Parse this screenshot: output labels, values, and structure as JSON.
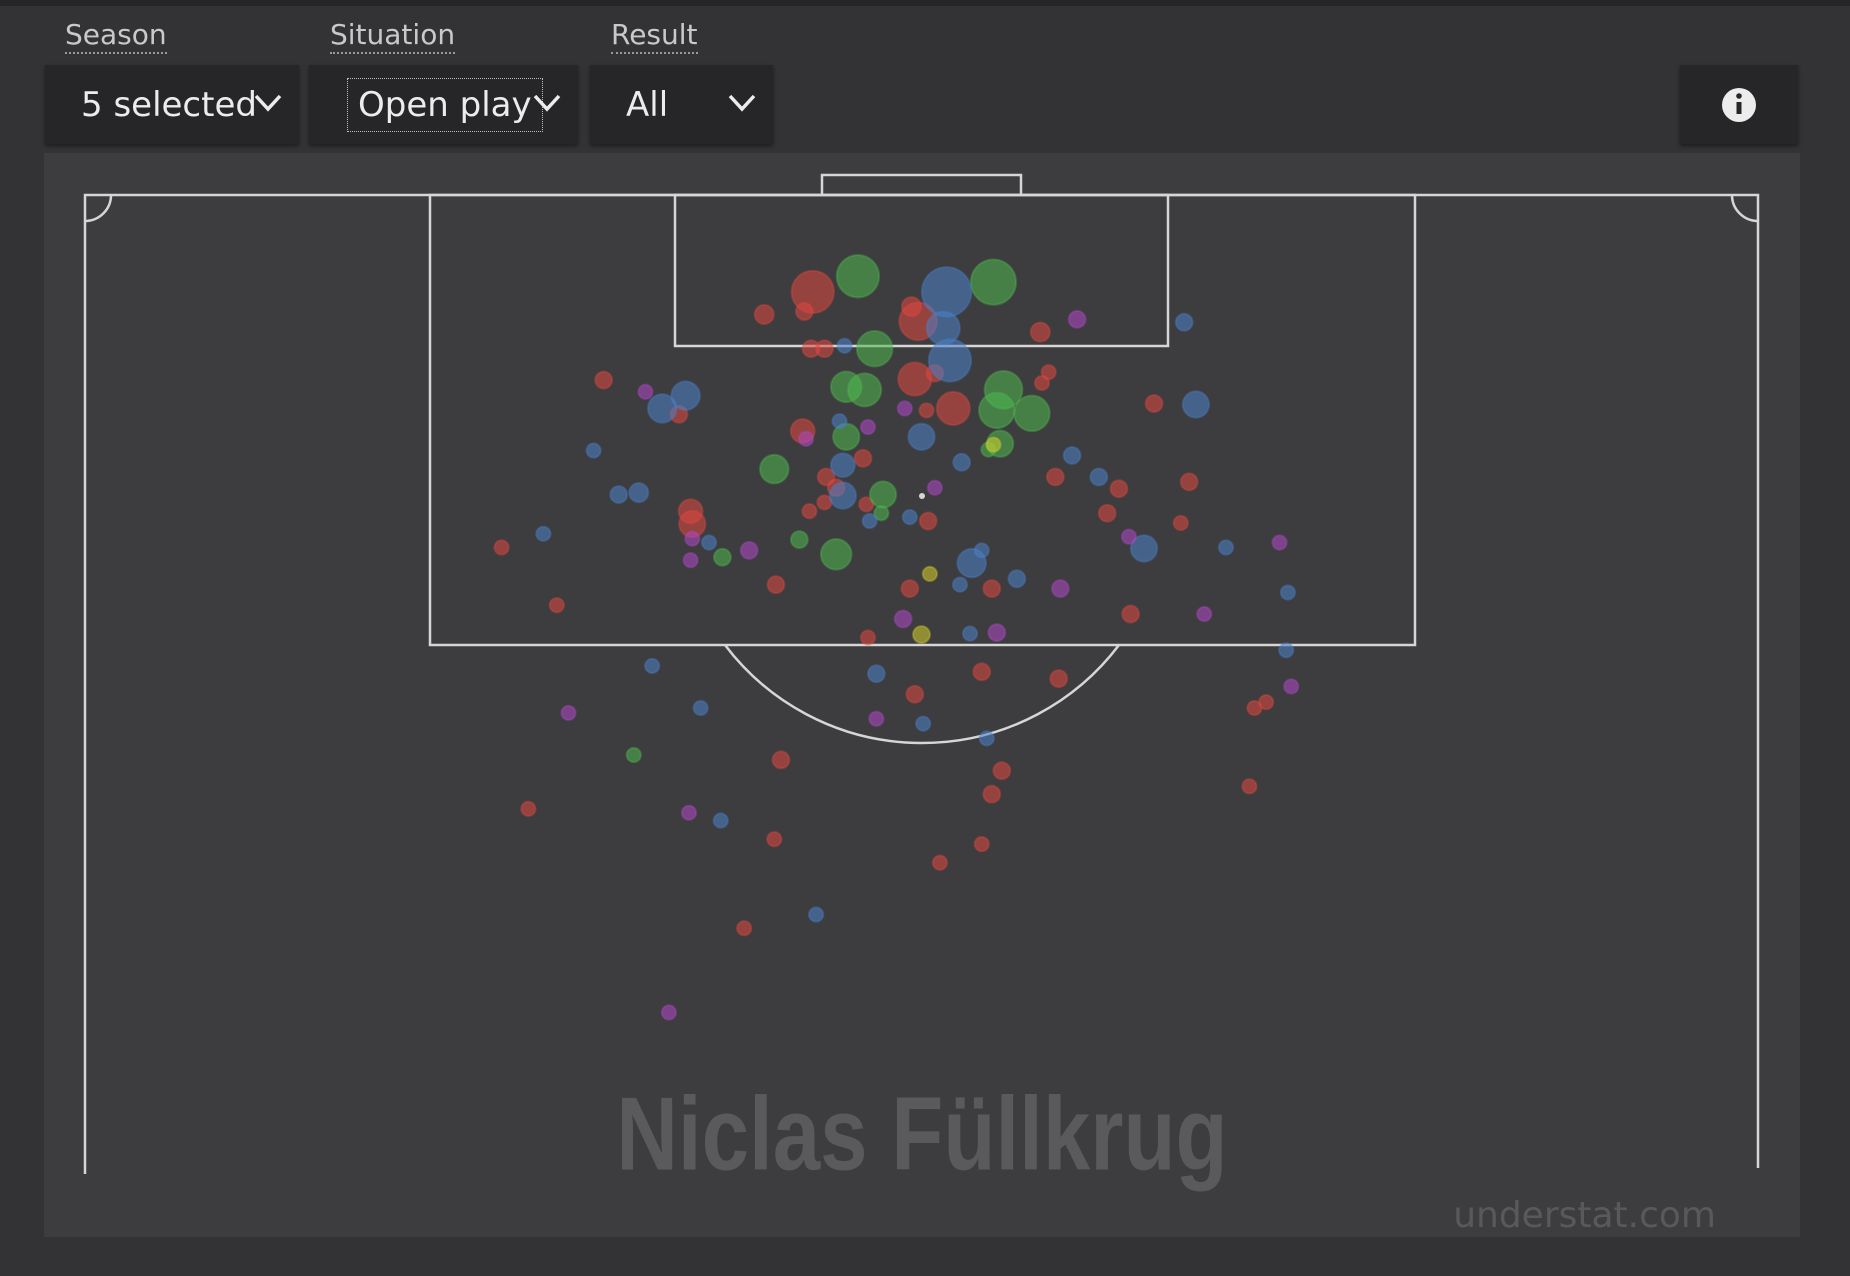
{
  "filters": [
    {
      "label": "Season",
      "value": "5 selected"
    },
    {
      "label": "Situation",
      "value": "Open play"
    },
    {
      "label": "Result",
      "value": "All"
    }
  ],
  "chart_data": {
    "type": "scatter",
    "title": "Niclas Füllkrug",
    "credit": "understat.com",
    "xlim": [
      0,
      100
    ],
    "ylim": [
      100,
      0
    ],
    "series": [
      {
        "color": "#e0473f",
        "x": [
          43.5,
          40.6,
          43.0,
          49.4,
          49.8,
          57.1,
          43.4,
          44.2,
          31.0,
          49.6,
          50.8,
          51.9,
          50.3,
          57.2,
          57.6,
          63.9,
          35.5,
          42.9,
          46.5,
          44.3,
          44.9,
          43.3,
          44.2,
          46.7,
          50.4,
          36.2,
          36.3,
          58.0,
          61.8,
          66.0,
          61.1,
          65.5,
          24.9,
          28.2,
          41.3,
          49.3,
          54.2,
          62.5,
          46.8,
          49.6,
          53.6,
          58.2,
          69.9,
          70.6,
          41.6,
          54.8,
          54.2,
          69.6,
          26.5,
          41.2,
          53.6,
          51.1,
          39.4
        ],
        "values": [
          9.9,
          12.2,
          11.9,
          11.4,
          12.9,
          14.0,
          15.7,
          15.7,
          18.9,
          18.8,
          18.2,
          21.8,
          22.0,
          19.2,
          18.1,
          21.3,
          22.4,
          24.1,
          26.9,
          28.8,
          29.9,
          32.3,
          31.4,
          31.6,
          33.3,
          32.3,
          33.6,
          28.8,
          30.0,
          29.3,
          32.5,
          33.5,
          36.0,
          41.9,
          39.8,
          40.2,
          40.2,
          42.8,
          45.2,
          51.0,
          48.7,
          49.4,
          52.4,
          51.8,
          57.7,
          58.8,
          61.2,
          60.4,
          62.7,
          65.8,
          66.3,
          68.2,
          74.9
        ],
        "sizes": [
          0.44,
          0.09,
          0.07,
          0.09,
          0.35,
          0.09,
          0.07,
          0.07,
          0.07,
          0.27,
          0.07,
          0.27,
          0.05,
          0.05,
          0.05,
          0.07,
          0.07,
          0.14,
          0.07,
          0.07,
          0.07,
          0.05,
          0.05,
          0.05,
          0.07,
          0.14,
          0.17,
          0.07,
          0.07,
          0.07,
          0.07,
          0.05,
          0.05,
          0.05,
          0.07,
          0.07,
          0.07,
          0.07,
          0.05,
          0.07,
          0.07,
          0.07,
          0.05,
          0.05,
          0.07,
          0.07,
          0.07,
          0.05,
          0.05,
          0.05,
          0.05,
          0.05,
          0.05
        ]
      },
      {
        "color": "#4fb84f",
        "x": [
          46.2,
          54.3,
          47.2,
          45.5,
          46.6,
          54.9,
          54.5,
          56.6,
          45.5,
          54.7,
          41.2,
          47.7,
          47.6,
          42.7,
          38.1,
          44.9,
          32.8,
          54.0
        ],
        "values": [
          8.3,
          8.9,
          15.7,
          19.6,
          19.9,
          19.9,
          22.0,
          22.3,
          24.7,
          25.4,
          28.0,
          30.6,
          32.5,
          35.2,
          37.0,
          36.7,
          57.2,
          26.0
        ],
        "sizes": [
          0.44,
          0.5,
          0.31,
          0.23,
          0.27,
          0.35,
          0.31,
          0.31,
          0.17,
          0.17,
          0.2,
          0.17,
          0.05,
          0.07,
          0.07,
          0.23,
          0.05,
          0.05
        ]
      },
      {
        "color": "#4a82c8",
        "x": [
          51.5,
          51.3,
          51.7,
          45.4,
          65.7,
          35.9,
          34.5,
          66.4,
          30.4,
          50.0,
          45.1,
          52.4,
          59.0,
          60.6,
          45.3,
          45.3,
          33.1,
          31.9,
          27.4,
          37.3,
          46.9,
          49.3,
          53.0,
          53.6,
          55.7,
          52.3,
          63.3,
          68.2,
          71.9,
          52.9,
          71.8,
          33.9,
          47.3,
          36.8,
          50.1,
          53.9,
          38.0,
          43.7
        ],
        "values": [
          9.9,
          13.6,
          16.9,
          15.4,
          13.0,
          20.5,
          21.8,
          21.4,
          26.1,
          24.7,
          23.1,
          27.3,
          26.6,
          28.8,
          27.6,
          30.7,
          30.4,
          30.6,
          34.6,
          35.5,
          33.3,
          32.9,
          37.6,
          36.3,
          39.2,
          39.8,
          36.1,
          36.0,
          40.6,
          44.8,
          46.5,
          48.1,
          48.9,
          52.4,
          54.0,
          55.5,
          63.9,
          73.5
        ],
        "sizes": [
          0.6,
          0.27,
          0.44,
          0.05,
          0.07,
          0.2,
          0.2,
          0.17,
          0.05,
          0.17,
          0.05,
          0.07,
          0.07,
          0.07,
          0.14,
          0.17,
          0.09,
          0.07,
          0.05,
          0.05,
          0.05,
          0.05,
          0.2,
          0.05,
          0.07,
          0.05,
          0.17,
          0.05,
          0.05,
          0.05,
          0.05,
          0.05,
          0.07,
          0.05,
          0.05,
          0.05,
          0.05,
          0.05
        ]
      },
      {
        "color": "#b048c8",
        "x": [
          59.3,
          33.5,
          49.0,
          46.8,
          43.1,
          50.8,
          36.3,
          39.7,
          36.2,
          62.4,
          71.4,
          58.3,
          66.9,
          48.9,
          54.5,
          47.3,
          72.1,
          28.9,
          36.1,
          34.9
        ],
        "values": [
          12.7,
          20.1,
          21.8,
          23.7,
          24.9,
          29.9,
          35.1,
          36.3,
          37.3,
          34.9,
          35.5,
          40.2,
          42.8,
          43.3,
          44.7,
          53.5,
          50.2,
          52.9,
          63.1,
          83.5
        ],
        "sizes": [
          0.07,
          0.05,
          0.05,
          0.05,
          0.05,
          0.05,
          0.05,
          0.07,
          0.05,
          0.05,
          0.05,
          0.07,
          0.05,
          0.07,
          0.07,
          0.05,
          0.05,
          0.05,
          0.05,
          0.05
        ]
      },
      {
        "color": "#d6cf2c",
        "x": [
          54.3,
          50.5,
          50.0
        ],
        "values": [
          25.5,
          38.7,
          44.9
        ],
        "sizes": [
          0.05,
          0.05,
          0.07
        ]
      }
    ]
  }
}
